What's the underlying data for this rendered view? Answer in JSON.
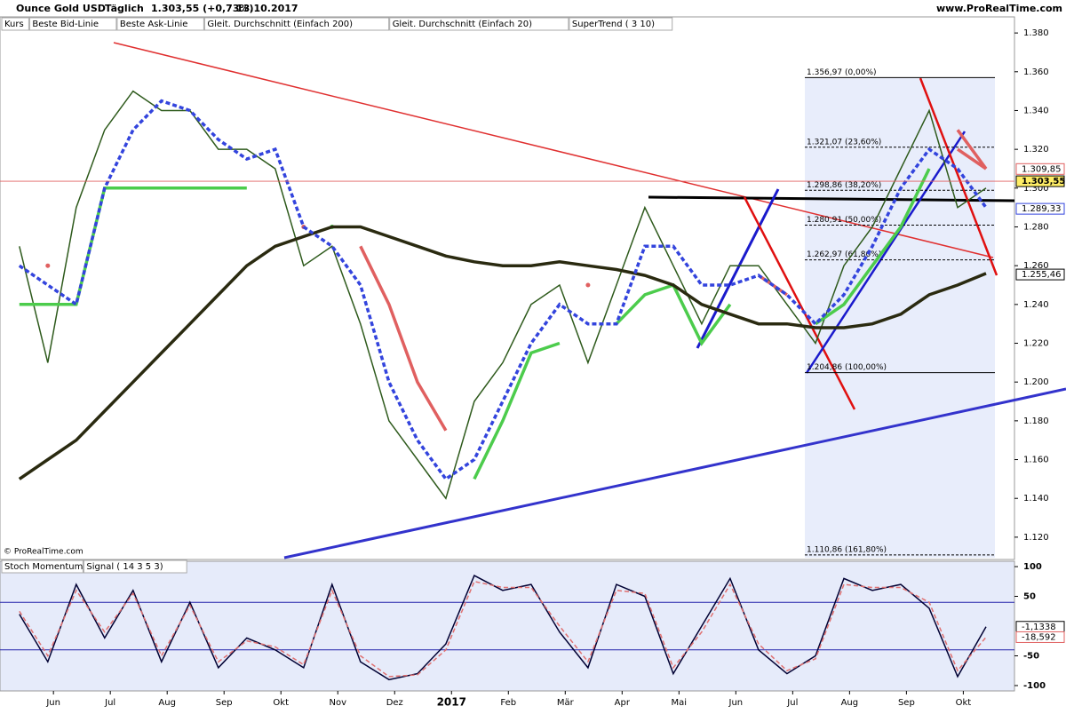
{
  "header": {
    "instrument": "Ounce Gold USD",
    "period": "Täglich",
    "price": "1.303,55 (+0,73%)",
    "date": "13.10.2017",
    "site": "www.ProRealTime.com",
    "watermark": "© ProRealTime.com"
  },
  "chart_data": [
    {
      "type": "line",
      "x": [
        -0.6,
        -0.1,
        0.4,
        0.9,
        1.4,
        1.9,
        2.4,
        2.9,
        3.4,
        3.9,
        4.4,
        4.9,
        5.4,
        5.9,
        6.4,
        6.9,
        7.4,
        7.9,
        8.4,
        8.9,
        9.4,
        9.9,
        10.4,
        10.9,
        11.4,
        11.9,
        12.4,
        12.9,
        13.4,
        13.9,
        14.4,
        14.9,
        15.4,
        15.9,
        16.4
      ],
      "xlim": [
        -0.94,
        16.9
      ],
      "ylim": [
        1.1085,
        1.3883
      ],
      "yticks": [
        {
          "value": 1.12,
          "label": "1.120"
        },
        {
          "value": 1.14,
          "label": "1.140"
        },
        {
          "value": 1.16,
          "label": "1.160"
        },
        {
          "value": 1.18,
          "label": "1.180"
        },
        {
          "value": 1.2,
          "label": "1.200"
        },
        {
          "value": 1.22,
          "label": "1.220"
        },
        {
          "value": 1.24,
          "label": "1.240"
        },
        {
          "value": 1.26,
          "label": "1.260"
        },
        {
          "value": 1.28,
          "label": "1.280"
        },
        {
          "value": 1.3,
          "label": "1.300"
        },
        {
          "value": 1.32,
          "label": "1.320"
        },
        {
          "value": 1.34,
          "label": "1.340"
        },
        {
          "value": 1.36,
          "label": "1.360"
        },
        {
          "value": 1.38,
          "label": "1.380"
        }
      ],
      "series": [
        {
          "name": "Kurs",
          "color": "#2e5a1c",
          "values": [
            1.27,
            1.21,
            1.29,
            1.33,
            1.35,
            1.34,
            1.34,
            1.32,
            1.32,
            1.31,
            1.26,
            1.27,
            1.23,
            1.18,
            1.16,
            1.14,
            1.19,
            1.21,
            1.24,
            1.25,
            1.21,
            1.25,
            1.29,
            1.26,
            1.23,
            1.26,
            1.26,
            1.24,
            1.22,
            1.26,
            1.28,
            1.31,
            1.34,
            1.29,
            1.3
          ]
        },
        {
          "name": "Beste Bid-Linie",
          "color": "#4ccc4c",
          "values": [
            1.24,
            1.24,
            1.24,
            1.3,
            1.3,
            1.3,
            1.3,
            1.3,
            1.3,
            null,
            null,
            1.28,
            null,
            null,
            null,
            null,
            1.15,
            1.18,
            1.215,
            1.22,
            null,
            1.23,
            1.245,
            1.25,
            1.22,
            1.24,
            null,
            null,
            1.23,
            1.24,
            1.26,
            1.28,
            1.31,
            null,
            null
          ]
        },
        {
          "name": "Beste Ask-Linie",
          "color": "#e06060",
          "values": [
            null,
            1.26,
            null,
            null,
            null,
            null,
            null,
            null,
            null,
            null,
            1.28,
            null,
            1.27,
            1.24,
            1.2,
            1.175,
            null,
            null,
            null,
            null,
            1.25,
            null,
            null,
            null,
            null,
            null,
            1.255,
            1.245,
            null,
            null,
            null,
            null,
            null,
            1.33,
            1.31
          ]
        },
        {
          "name": "Gleit. Durchschnitt (Einfach 200)",
          "color": "#2a2a10",
          "values": [
            1.15,
            1.16,
            1.17,
            1.185,
            1.2,
            1.215,
            1.23,
            1.245,
            1.26,
            1.27,
            1.275,
            1.28,
            1.28,
            1.275,
            1.27,
            1.265,
            1.262,
            1.26,
            1.26,
            1.262,
            1.26,
            1.258,
            1.255,
            1.25,
            1.24,
            1.235,
            1.23,
            1.23,
            1.228,
            1.228,
            1.23,
            1.235,
            1.245,
            1.25,
            1.256
          ]
        },
        {
          "name": "Gleit. Durchschnitt (Einfach 20)",
          "color": "#3344dd",
          "dashed": true,
          "values": [
            1.26,
            1.25,
            1.24,
            1.3,
            1.33,
            1.345,
            1.34,
            1.325,
            1.315,
            1.32,
            1.28,
            1.27,
            1.25,
            1.2,
            1.17,
            1.15,
            1.16,
            1.19,
            1.22,
            1.24,
            1.23,
            1.23,
            1.27,
            1.27,
            1.25,
            1.25,
            1.255,
            1.245,
            1.23,
            1.245,
            1.27,
            1.3,
            1.32,
            1.31,
            1.29
          ]
        },
        {
          "name": "SuperTrend ( 3 10)",
          "color": "#e06060",
          "values": [
            null,
            null,
            null,
            null,
            null,
            null,
            null,
            null,
            null,
            null,
            null,
            null,
            null,
            null,
            null,
            null,
            null,
            null,
            null,
            null,
            null,
            null,
            null,
            null,
            null,
            null,
            null,
            null,
            null,
            null,
            null,
            null,
            null,
            1.32,
            1.31
          ]
        }
      ],
      "fib_levels": [
        {
          "value": 1.35697,
          "label": "1.356,97 (0,00%)"
        },
        {
          "value": 1.32107,
          "label": "1.321,07 (23,60%)"
        },
        {
          "value": 1.29886,
          "label": "1.298,86 (38,20%)"
        },
        {
          "value": 1.28091,
          "label": "1.280,91 (50,00%)"
        },
        {
          "value": 1.26297,
          "label": "1.262,97 (61,80%)"
        },
        {
          "value": 1.20486,
          "label": "1.204,86 (100,00%)"
        },
        {
          "value": 1.11086,
          "label": "1.110,86 (161,80%)"
        }
      ],
      "price_labels": [
        {
          "value": 1.30985,
          "label": "1.309,85",
          "color": "#e06060"
        },
        {
          "value": 1.30355,
          "label": "1.303,55",
          "color": "#000000"
        },
        {
          "value": 1.28933,
          "label": "1.289,33",
          "color": "#3344dd"
        },
        {
          "value": 1.25546,
          "label": "1.255,46",
          "color": "#000000"
        }
      ]
    },
    {
      "type": "line",
      "x": [
        -0.6,
        -0.1,
        0.4,
        0.9,
        1.4,
        1.9,
        2.4,
        2.9,
        3.4,
        3.9,
        4.4,
        4.9,
        5.4,
        5.9,
        6.4,
        6.9,
        7.4,
        7.9,
        8.4,
        8.9,
        9.4,
        9.9,
        10.4,
        10.9,
        11.4,
        11.9,
        12.4,
        12.9,
        13.4,
        13.9,
        14.4,
        14.9,
        15.4,
        15.9,
        16.4
      ],
      "xlim": [
        -0.94,
        16.9
      ],
      "xticks": [
        {
          "value": 0,
          "label": "Jun"
        },
        {
          "value": 1,
          "label": "Jul"
        },
        {
          "value": 2,
          "label": "Aug"
        },
        {
          "value": 3,
          "label": "Sep"
        },
        {
          "value": 4,
          "label": "Okt"
        },
        {
          "value": 5,
          "label": "Nov"
        },
        {
          "value": 6,
          "label": "Dez"
        },
        {
          "value": 7,
          "label": "2017"
        },
        {
          "value": 8,
          "label": "Feb"
        },
        {
          "value": 9,
          "label": "Mär"
        },
        {
          "value": 10,
          "label": "Apr"
        },
        {
          "value": 11,
          "label": "Mai"
        },
        {
          "value": 12,
          "label": "Jun"
        },
        {
          "value": 13,
          "label": "Jul"
        },
        {
          "value": 14,
          "label": "Aug"
        },
        {
          "value": 15,
          "label": "Sep"
        },
        {
          "value": 16,
          "label": "Okt"
        }
      ],
      "ylim": [
        -109,
        109
      ],
      "yticks": [
        100,
        50,
        -50,
        -100
      ],
      "levels": [
        40,
        -40
      ],
      "series": [
        {
          "name": "Stoch Momentum",
          "color": "#000033",
          "values": [
            20,
            -60,
            70,
            -20,
            60,
            -60,
            40,
            -70,
            -20,
            -40,
            -70,
            70,
            -60,
            -90,
            -80,
            -30,
            85,
            60,
            70,
            -10,
            -70,
            70,
            50,
            -80,
            0,
            80,
            -40,
            -80,
            -50,
            80,
            60,
            70,
            30,
            -85,
            -1.1338
          ]
        },
        {
          "name": "Signal ( 14 3 5 3)",
          "color": "#e07070",
          "dashed": true,
          "values": [
            25,
            -50,
            60,
            -10,
            55,
            -50,
            35,
            -60,
            -25,
            -35,
            -65,
            60,
            -50,
            -85,
            -82,
            -40,
            75,
            65,
            65,
            0,
            -60,
            60,
            55,
            -70,
            -10,
            70,
            -30,
            -75,
            -55,
            70,
            65,
            65,
            40,
            -75,
            -18.592
          ]
        }
      ],
      "price_labels": [
        {
          "value": -1.1338,
          "label": "-1,1338",
          "color": "#000000"
        },
        {
          "value": -18.592,
          "label": "-18,592",
          "color": "#e06060"
        }
      ]
    }
  ]
}
